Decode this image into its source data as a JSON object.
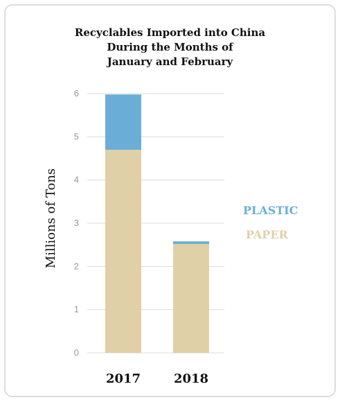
{
  "chart_data": {
    "type": "bar",
    "stacked": true,
    "title_lines": [
      "Recyclables Imported into China",
      "During the Months of",
      "January and February"
    ],
    "xlabel": "",
    "ylabel": "Millions of Tons",
    "categories": [
      "2017",
      "2018"
    ],
    "series": [
      {
        "name": "PAPER",
        "values": [
          4.7,
          2.52
        ],
        "color": "#e0d0a8"
      },
      {
        "name": "PLASTIC",
        "values": [
          1.28,
          0.06
        ],
        "color": "#6aaed8"
      }
    ],
    "legend_order": [
      "PLASTIC",
      "PAPER"
    ],
    "yticks": [
      0,
      1,
      2,
      3,
      4,
      5,
      6
    ],
    "ylim": [
      0,
      6
    ],
    "grid": true,
    "legend_position": "right"
  }
}
